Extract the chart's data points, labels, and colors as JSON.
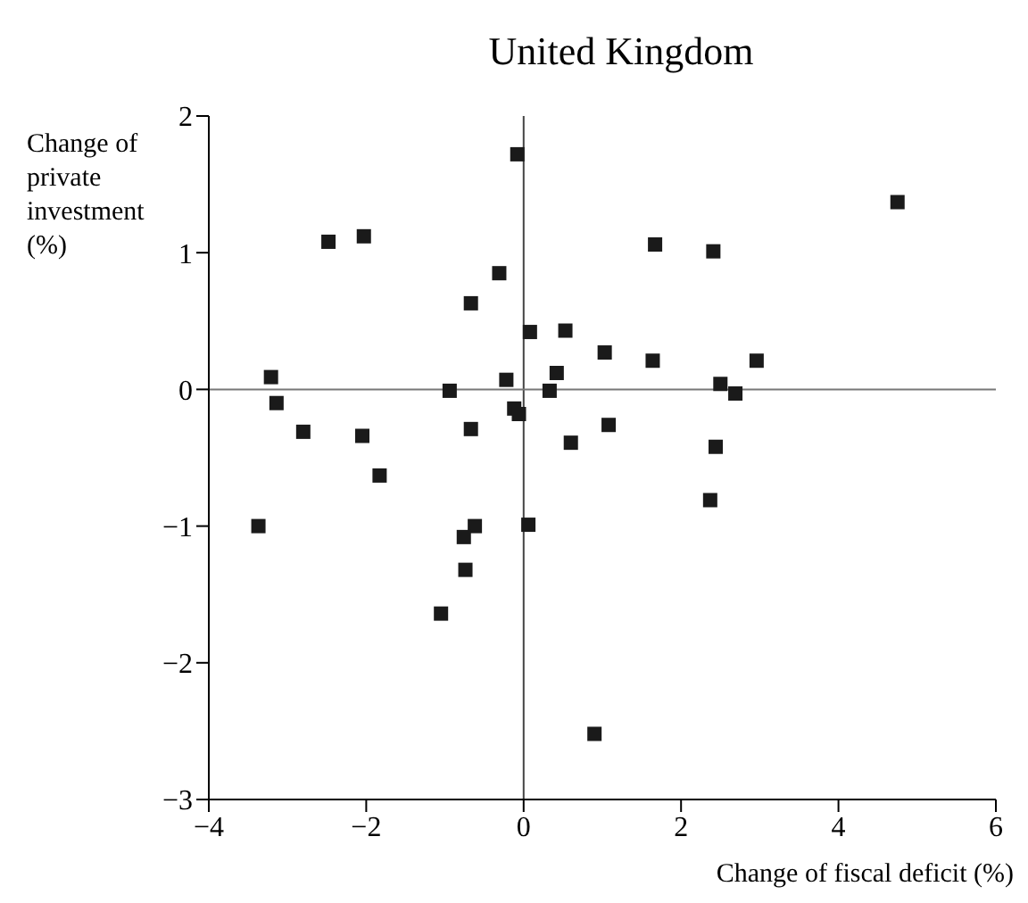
{
  "chart_data": {
    "type": "scatter",
    "title": "United Kingdom",
    "xlabel": "Change of fiscal deficit (%)",
    "ylabel": "Change of private investment (%)",
    "x": [
      -0.08,
      4.75,
      -2.48,
      -2.03,
      1.67,
      2.41,
      -0.31,
      -0.67,
      0.08,
      0.53,
      1.03,
      1.64,
      2.96,
      0.42,
      -3.21,
      -0.22,
      -0.94,
      0.33,
      2.5,
      2.69,
      -3.14,
      -0.12,
      -0.06,
      -2.8,
      -2.05,
      -0.67,
      1.08,
      0.6,
      2.44,
      -1.83,
      -3.37,
      -0.62,
      -0.76,
      0.06,
      2.37,
      -0.74,
      -1.05,
      0.9
    ],
    "values": [
      1.72,
      1.37,
      1.08,
      1.12,
      1.06,
      1.01,
      0.85,
      0.63,
      0.42,
      0.43,
      0.27,
      0.21,
      0.21,
      0.12,
      0.09,
      0.07,
      -0.01,
      -0.01,
      0.04,
      -0.03,
      -0.1,
      -0.14,
      -0.18,
      -0.31,
      -0.34,
      -0.29,
      -0.26,
      -0.39,
      -0.42,
      -0.63,
      -1.0,
      -1.0,
      -1.08,
      -0.99,
      -0.81,
      -1.32,
      -1.64,
      -2.52
    ],
    "color": "#1a1a1a",
    "marker": "square",
    "xlim": [
      -4,
      6
    ],
    "xticks": [
      -4,
      -2,
      0,
      2,
      4,
      6
    ],
    "ylim": [
      -3,
      2
    ],
    "yticks": [
      -3,
      -2,
      -1,
      0,
      1,
      2
    ],
    "ref_lines": [
      {
        "axis": "x",
        "value": 0,
        "color": "#444444"
      },
      {
        "axis": "y",
        "value": 0,
        "color": "#777777"
      }
    ],
    "grid": false
  }
}
